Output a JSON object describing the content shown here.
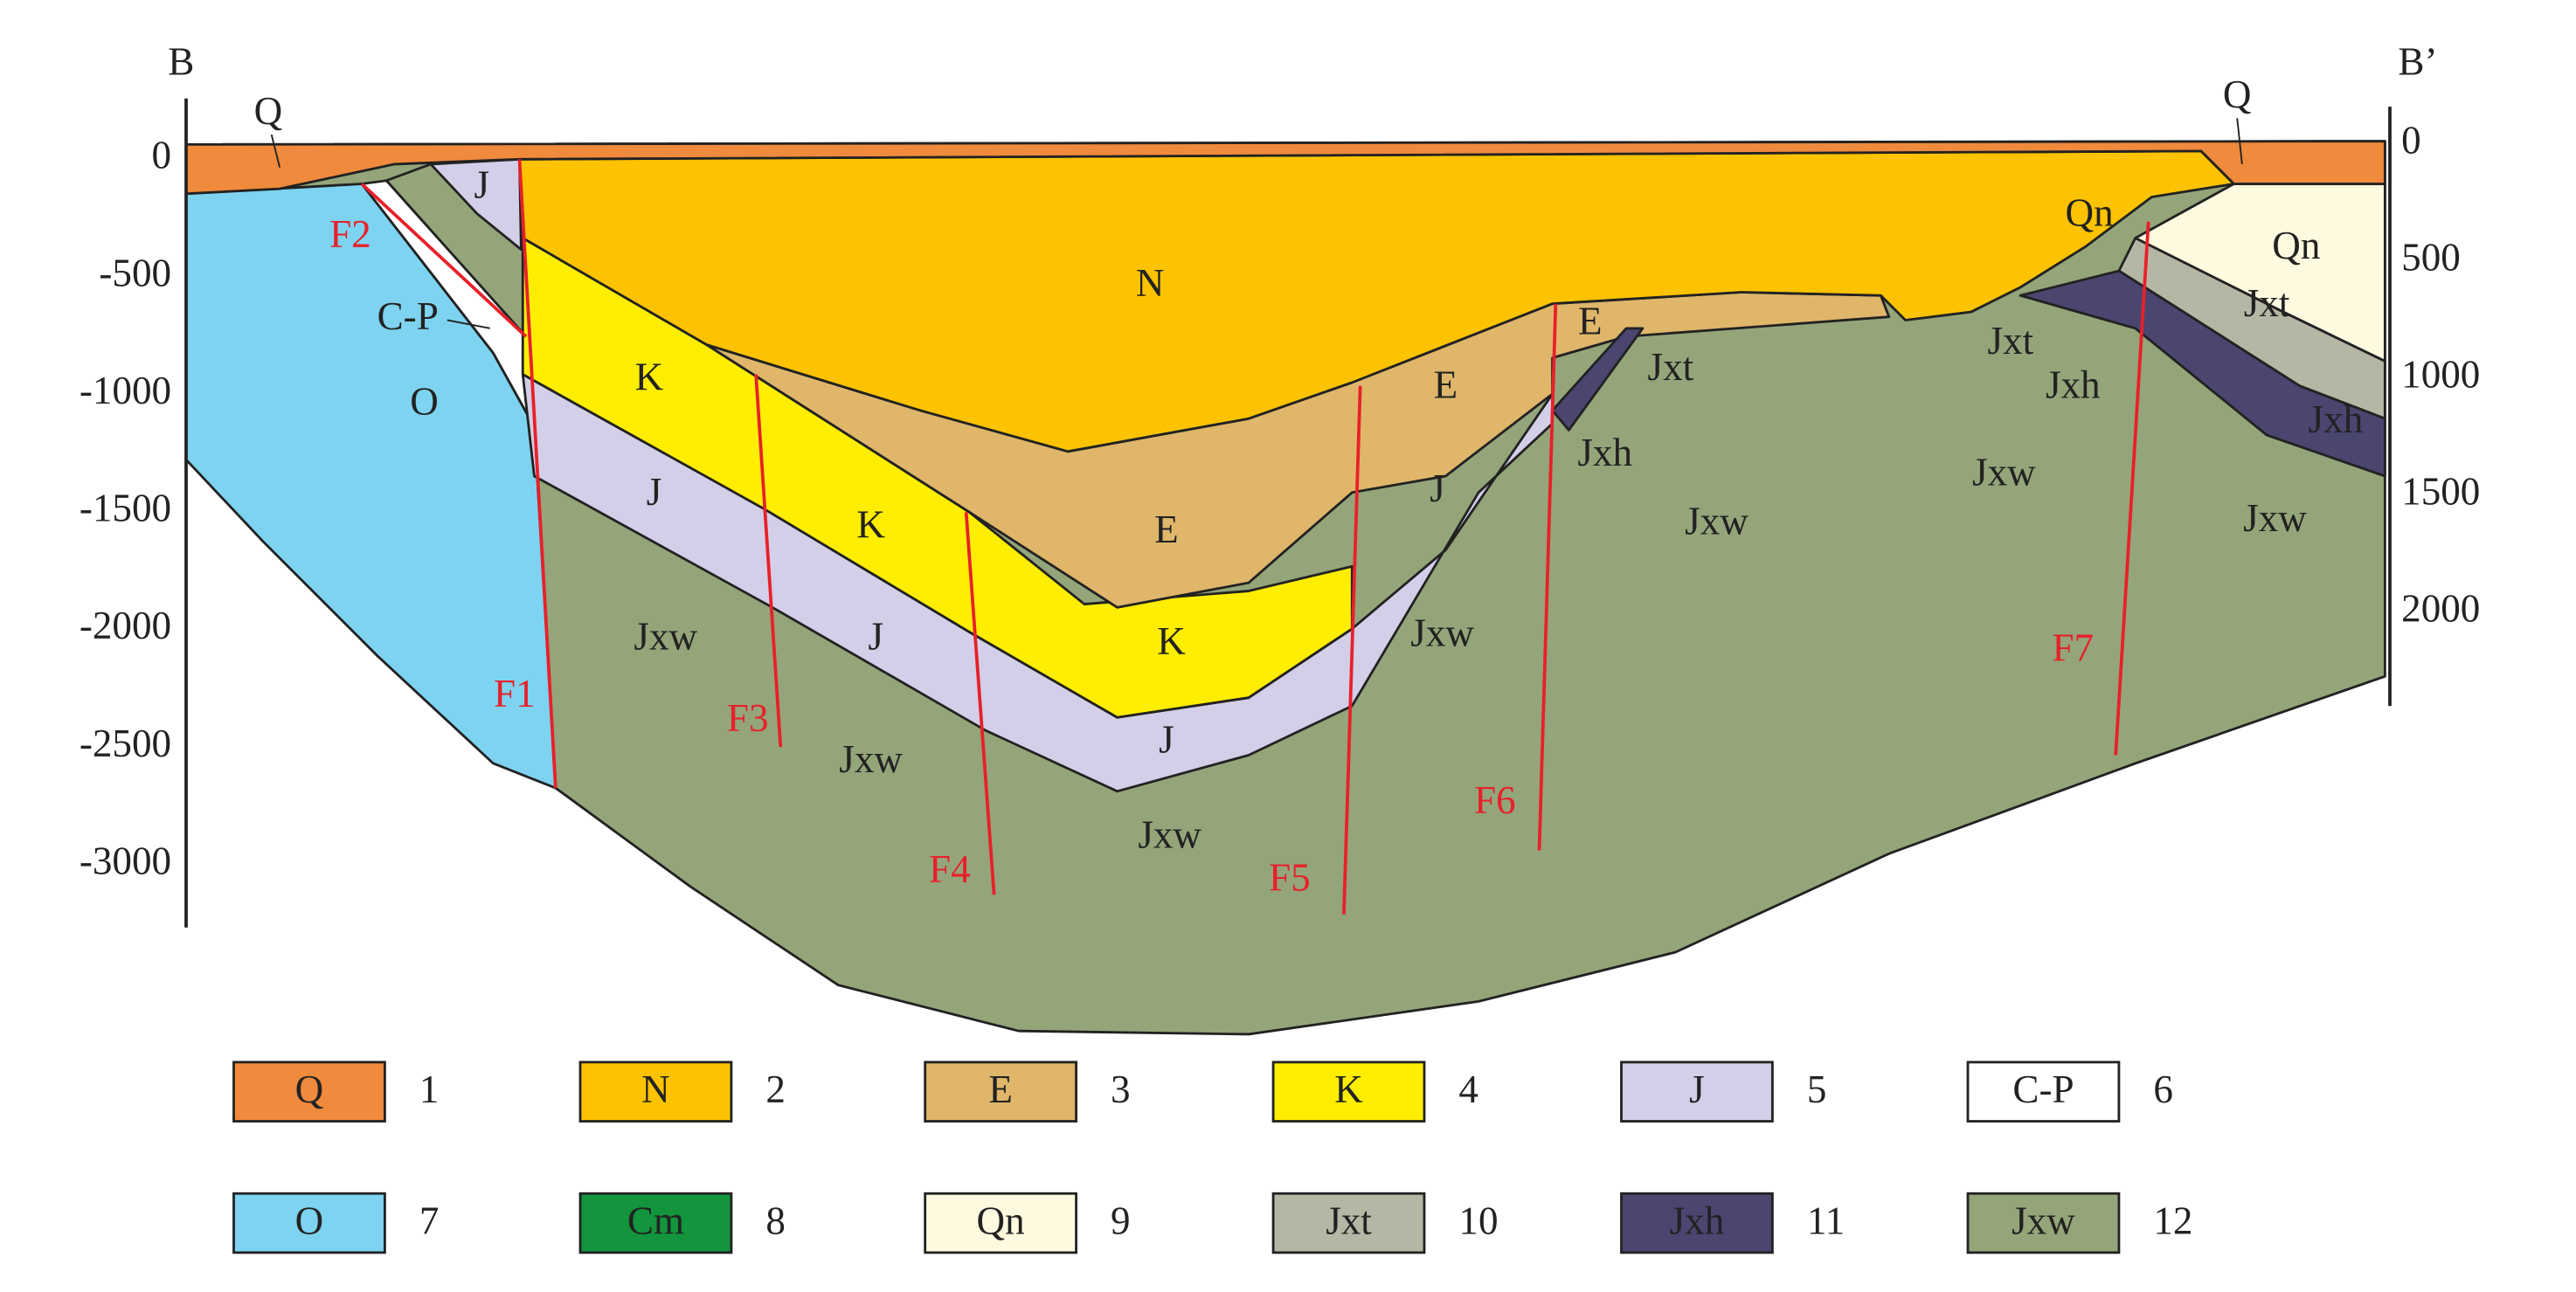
{
  "section": {
    "left_label": "B",
    "right_label": "B’",
    "left_axis": {
      "ticks": [
        0,
        -500,
        -1000,
        -1500,
        -2000,
        -2500,
        -3000
      ]
    },
    "right_axis": {
      "ticks": [
        0,
        500,
        1000,
        1500,
        2000
      ]
    }
  },
  "formation_labels": [
    "Q",
    "Q",
    "J",
    "N",
    "C-P",
    "O",
    "K",
    "J",
    "K",
    "Jxw",
    "J",
    "E",
    "K",
    "Jxw",
    "J",
    "Jxw",
    "E",
    "J",
    "Jxw",
    "E",
    "Jxt",
    "Jxh",
    "Jxw",
    "Jxw",
    "Qn",
    "Jxt",
    "Jxh",
    "Qn",
    "Jxt",
    "Jxh",
    "Jxw"
  ],
  "fault_labels": [
    "F1",
    "F2",
    "F3",
    "F4",
    "F5",
    "F6",
    "F7"
  ],
  "legend": [
    {
      "label": "Q",
      "number": 1,
      "color": "#f08a3c"
    },
    {
      "label": "N",
      "number": 2,
      "color": "#fdc300"
    },
    {
      "label": "E",
      "number": 3,
      "color": "#dfb66a"
    },
    {
      "label": "K",
      "number": 4,
      "color": "#ffee00"
    },
    {
      "label": "J",
      "number": 5,
      "color": "#d3cfe8"
    },
    {
      "label": "C-P",
      "number": 6,
      "color": "#ffffff"
    },
    {
      "label": "O",
      "number": 7,
      "color": "#7dd3f0"
    },
    {
      "label": "Cm",
      "number": 8,
      "color": "#12953c"
    },
    {
      "label": "Qn",
      "number": 9,
      "color": "#fefae0"
    },
    {
      "label": "Jxt",
      "number": 10,
      "color": "#b5b6a4"
    },
    {
      "label": "Jxh",
      "number": 11,
      "color": "#4a4670"
    },
    {
      "label": "Jxw",
      "number": 12,
      "color": "#94a57a"
    }
  ]
}
